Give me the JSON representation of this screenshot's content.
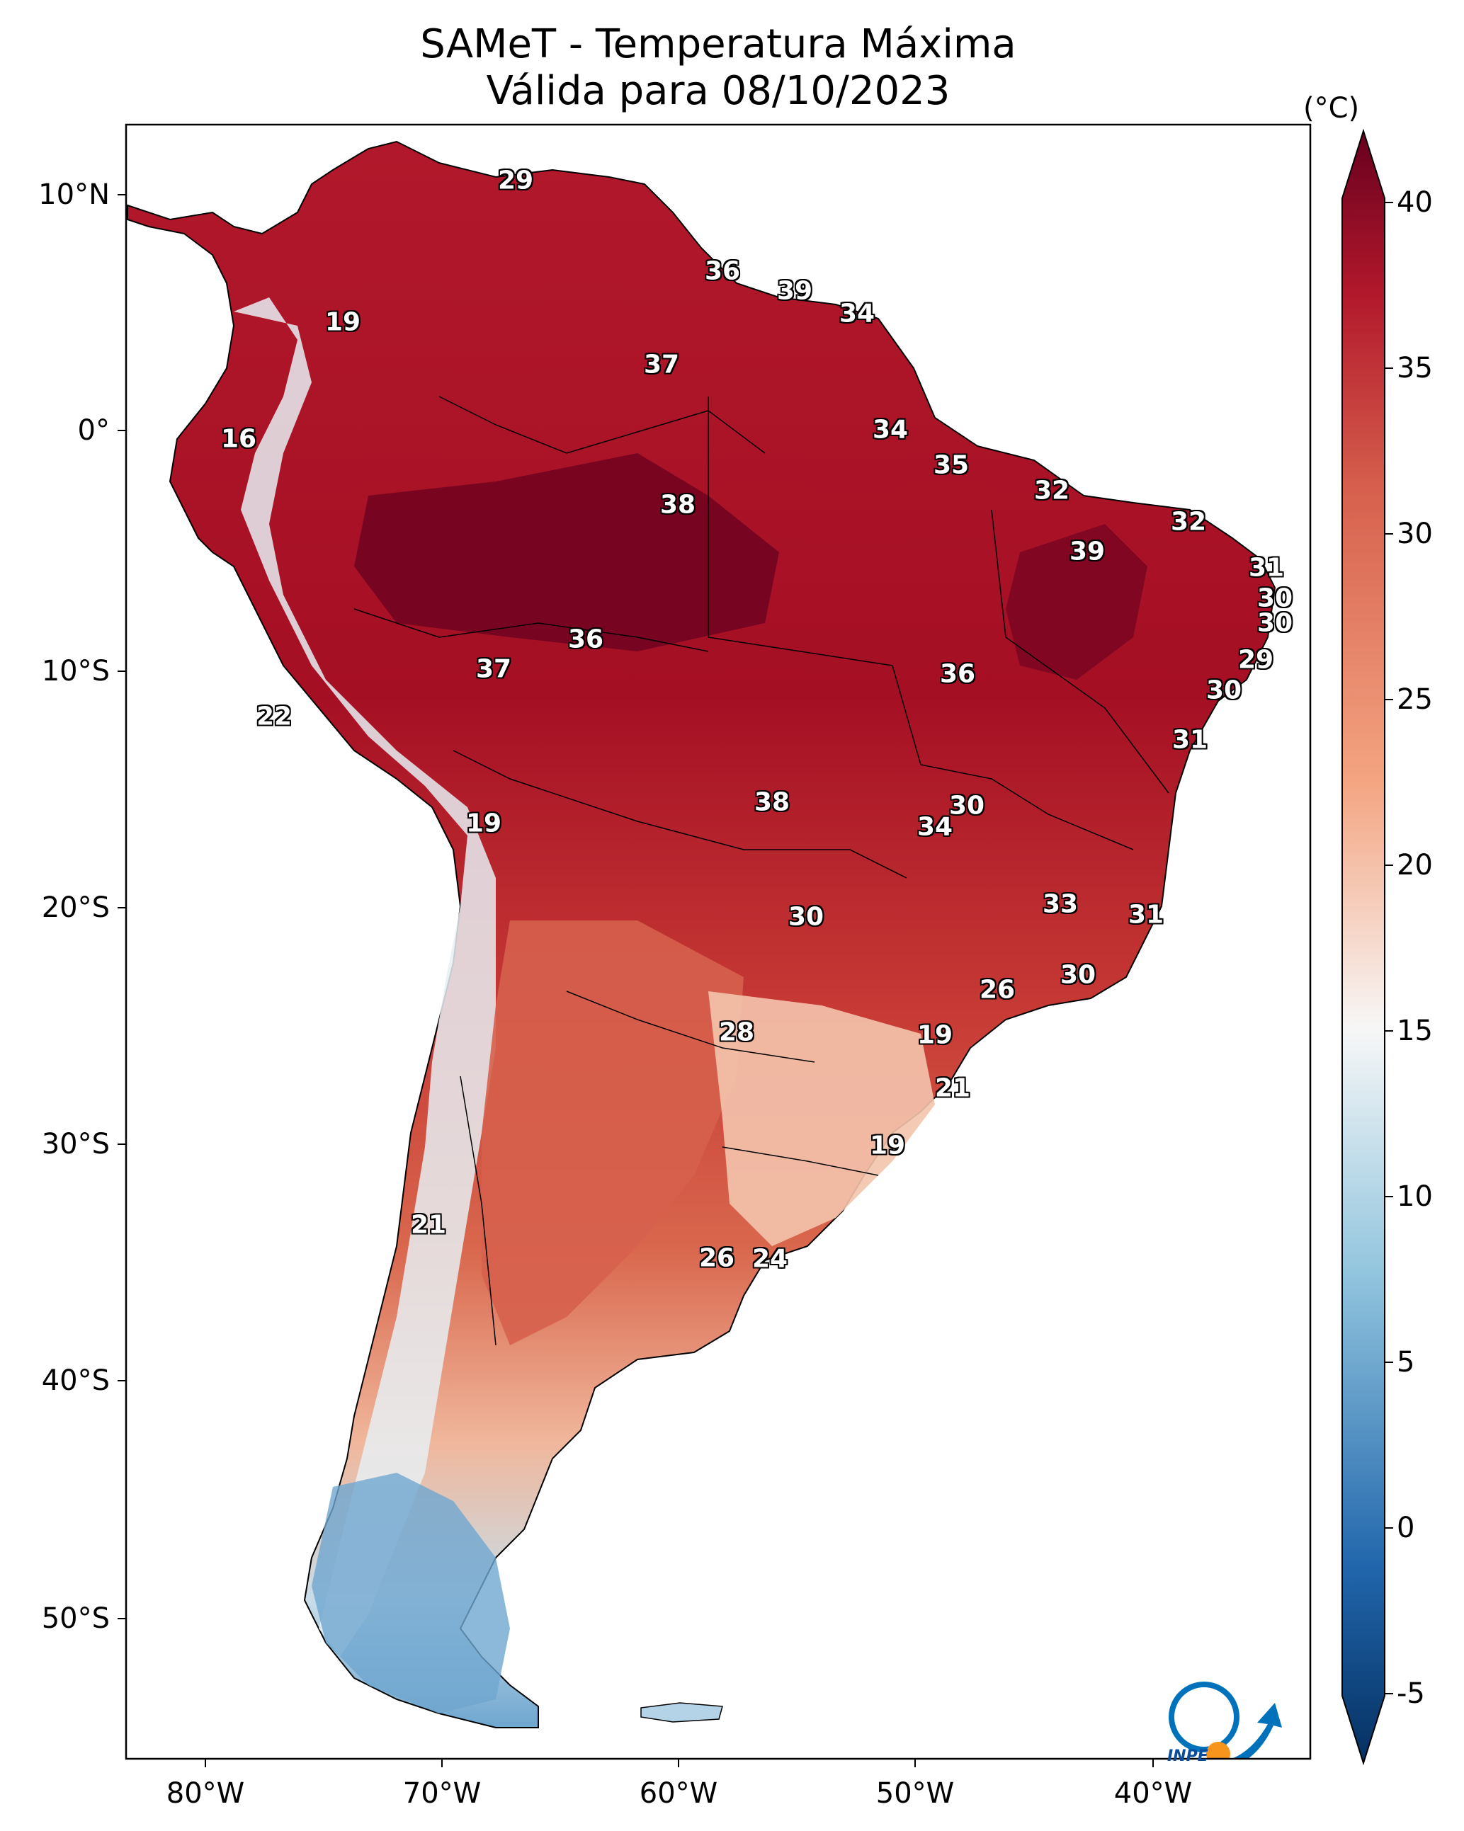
{
  "title": {
    "line1": "SAMeT - Temperatura Máxima",
    "line2": "Válida para 08/10/2023"
  },
  "axes": {
    "lat_ticks": [
      "10°N",
      "0°",
      "10°S",
      "20°S",
      "30°S",
      "40°S",
      "50°S"
    ],
    "lon_ticks": [
      "80°W",
      "70°W",
      "60°W",
      "50°W",
      "40°W"
    ]
  },
  "colorbar": {
    "unit": "(°C)",
    "ticks": [
      "40",
      "35",
      "30",
      "25",
      "20",
      "15",
      "10",
      "5",
      "0",
      "-5"
    ],
    "range": [
      -5,
      40
    ],
    "colors": {
      "min": "#053061",
      "low": "#2166ac",
      "mid_low": "#92c5de",
      "mid": "#f7f7f7",
      "mid_high": "#f4a582",
      "high": "#d6604d",
      "max": "#67001f"
    }
  },
  "station_labels": [
    "29",
    "36",
    "39",
    "34",
    "19",
    "37",
    "16",
    "34",
    "35",
    "38",
    "32",
    "32",
    "39",
    "31",
    "30",
    "30",
    "36",
    "37",
    "29",
    "36",
    "30",
    "22",
    "31",
    "38",
    "30",
    "19",
    "34",
    "33",
    "31",
    "30",
    "30",
    "26",
    "28",
    "19",
    "21",
    "19",
    "21",
    "26",
    "24"
  ],
  "logo": {
    "text": "INPE",
    "icon": "inpe-logo-icon"
  }
}
